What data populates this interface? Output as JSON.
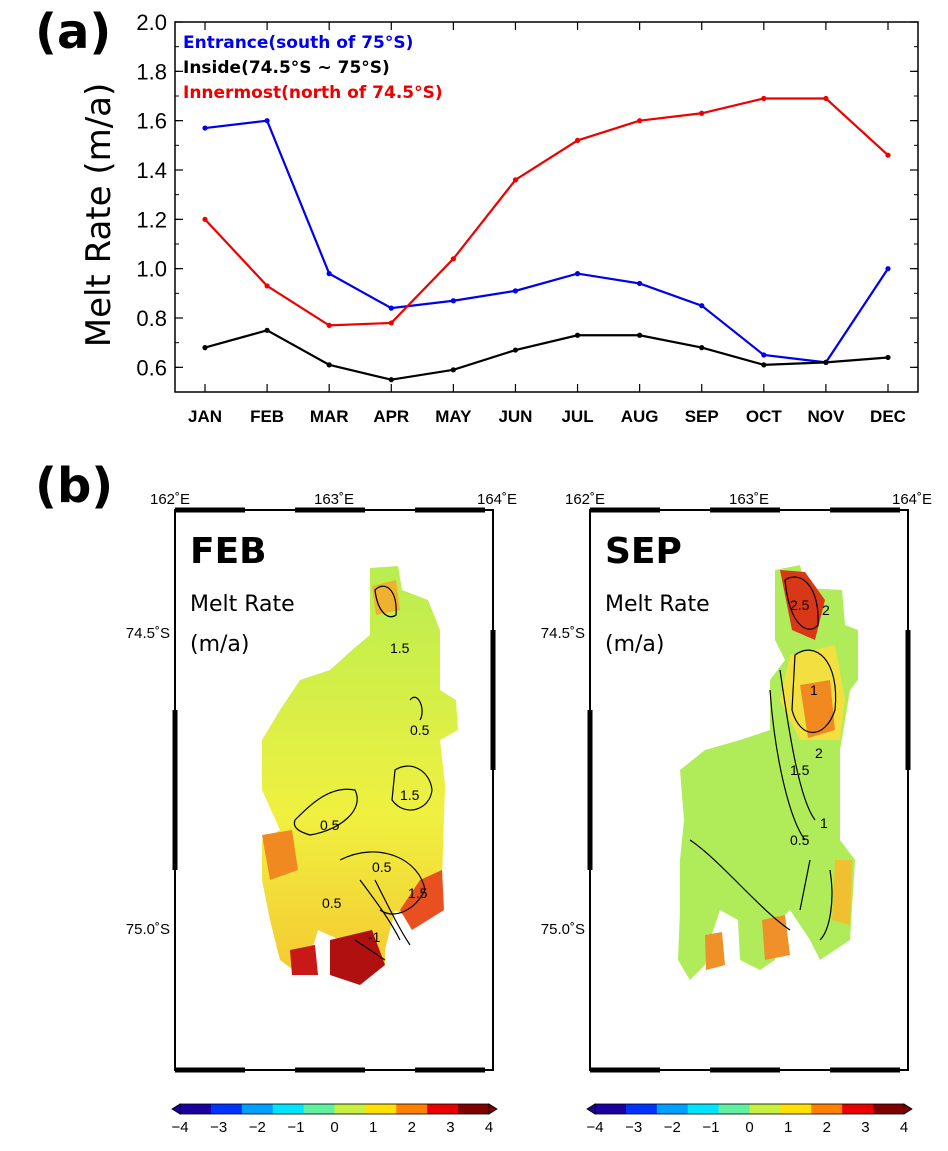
{
  "panel_a": {
    "label": "(a)"
  },
  "panel_b": {
    "label": "(b)"
  },
  "chart_data": {
    "type": "line",
    "ylabel": "Melt Rate (m/a)",
    "ylim": [
      0.5,
      2.0
    ],
    "yticks": [
      "0.6",
      "0.8",
      "1.0",
      "1.2",
      "1.4",
      "1.6",
      "1.8",
      "2.0"
    ],
    "categories": [
      "JAN",
      "FEB",
      "MAR",
      "APR",
      "MAY",
      "JUN",
      "JUL",
      "AUG",
      "SEP",
      "OCT",
      "NOV",
      "DEC"
    ],
    "legend_position": "top-left",
    "series": [
      {
        "name": "Entrance(south of 75°S)",
        "color": "#0000ee",
        "values": [
          1.57,
          1.6,
          0.98,
          0.84,
          0.87,
          0.91,
          0.98,
          0.94,
          0.85,
          0.65,
          0.62,
          1.0
        ]
      },
      {
        "name": "Inside(74.5°S ~ 75°S)",
        "color": "#000000",
        "values": [
          0.68,
          0.75,
          0.61,
          0.55,
          0.59,
          0.67,
          0.73,
          0.73,
          0.68,
          0.61,
          0.62,
          0.64
        ]
      },
      {
        "name": "Innermost(north of 74.5°S)",
        "color": "#ee0000",
        "values": [
          1.2,
          0.93,
          0.77,
          0.78,
          1.04,
          1.36,
          1.52,
          1.6,
          1.63,
          1.69,
          1.69,
          1.46
        ]
      }
    ]
  },
  "maps": [
    {
      "title": "FEB",
      "subtitle_1": "Melt Rate",
      "subtitle_2": "(m/a)",
      "lon_labels": [
        "162˚E",
        "163˚E",
        "164˚E"
      ],
      "lat_labels": [
        "74.5˚S",
        "75.0˚S"
      ],
      "contour_labels": [
        "1.5",
        "0.5",
        "1.5",
        "0.5",
        "0.5",
        "1.5",
        "0.5",
        "-1"
      ]
    },
    {
      "title": "SEP",
      "subtitle_1": "Melt Rate",
      "subtitle_2": "(m/a)",
      "lon_labels": [
        "162˚E",
        "163˚E",
        "164˚E"
      ],
      "lat_labels": [
        "74.5˚S",
        "75.0˚S"
      ],
      "contour_labels": [
        "2.5",
        "2",
        "1",
        "2",
        "1.5",
        "1",
        "0.5"
      ]
    }
  ],
  "colorbar": {
    "ticks": [
      "−4",
      "−3",
      "−2",
      "−1",
      "0",
      "1",
      "2",
      "3",
      "4"
    ],
    "colors": [
      "#1a00a0",
      "#0033ff",
      "#00a0ff",
      "#00e5ff",
      "#60f0a0",
      "#c8f040",
      "#ffe000",
      "#ff8000",
      "#e80000",
      "#800000"
    ]
  }
}
